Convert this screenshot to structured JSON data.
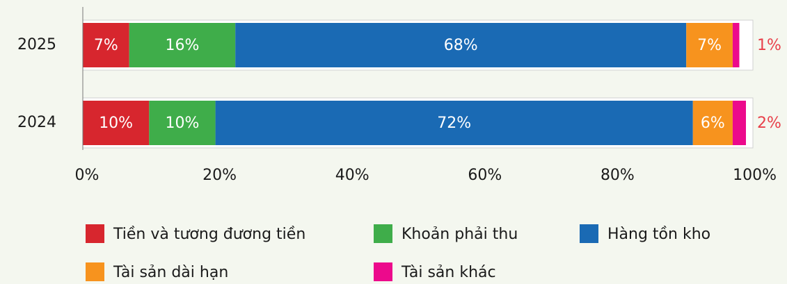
{
  "chart_data": {
    "type": "stacked_bar_horizontal",
    "categories": [
      "2025",
      "2024"
    ],
    "series": [
      {
        "name": "Tiền và tương đương tiền",
        "color": "#d7262e",
        "values": [
          7,
          10
        ],
        "value_labels": [
          "7%",
          "10%"
        ]
      },
      {
        "name": "Khoản phải thu",
        "color": "#3fad4a",
        "values": [
          16,
          10
        ],
        "value_labels": [
          "16%",
          "10%"
        ]
      },
      {
        "name": "Hàng tồn kho",
        "color": "#1a6ab4",
        "values": [
          68,
          72
        ],
        "value_labels": [
          "68%",
          "72%"
        ]
      },
      {
        "name": "Tài sản dài hạn",
        "color": "#f7931e",
        "values": [
          7,
          6
        ],
        "value_labels": [
          "7%",
          "6%"
        ]
      },
      {
        "name": "Tài sản khác",
        "color": "#ec0a8c",
        "values": [
          1,
          2
        ],
        "value_labels": [
          "1%",
          "2%"
        ]
      }
    ],
    "xlim": [
      0,
      100
    ],
    "xticks": [
      {
        "value": 0,
        "label": "0%"
      },
      {
        "value": 20,
        "label": "20%"
      },
      {
        "value": 40,
        "label": "40%"
      },
      {
        "value": 60,
        "label": "60%"
      },
      {
        "value": 80,
        "label": "80%"
      },
      {
        "value": 100,
        "label": "100%"
      }
    ]
  }
}
